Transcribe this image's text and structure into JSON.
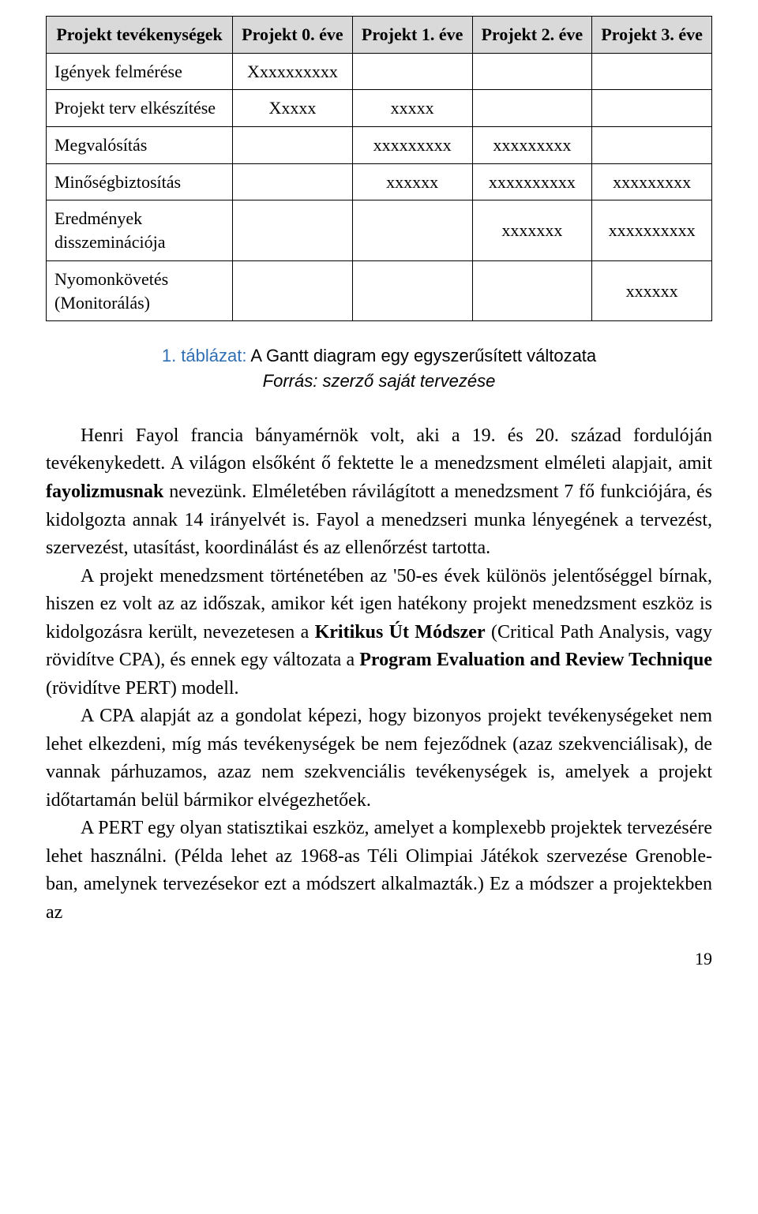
{
  "table": {
    "header_bg": "#d9d9d9",
    "border_color": "#000000",
    "columns": [
      "Projekt tevékenységek",
      "Projekt 0. éve",
      "Projekt 1. éve",
      "Projekt 2. éve",
      "Projekt 3. éve"
    ],
    "rows": [
      {
        "label": "Igények felmérése",
        "cells": [
          "Xxxxxxxxxx",
          "",
          "",
          ""
        ]
      },
      {
        "label": "Projekt terv elkészítése",
        "cells": [
          "Xxxxx",
          "xxxxx",
          "",
          ""
        ]
      },
      {
        "label": "Megvalósítás",
        "cells": [
          "",
          "xxxxxxxxx",
          "xxxxxxxxx",
          ""
        ]
      },
      {
        "label": "Minőségbiztosítás",
        "cells": [
          "",
          "xxxxxx",
          "xxxxxxxxxx",
          "xxxxxxxxx"
        ]
      },
      {
        "label": "Eredmények disszeminációja",
        "cells": [
          "",
          "",
          "xxxxxxx",
          "xxxxxxxxxx"
        ]
      },
      {
        "label": "Nyomonkövetés (Monitorálás)",
        "cells": [
          "",
          "",
          "",
          "xxxxxx"
        ]
      }
    ],
    "col_widths_pct": [
      28,
      18,
      18,
      18,
      18
    ],
    "font_size_pt": 16
  },
  "caption": {
    "lead": "1. táblázat:",
    "main": " A Gantt diagram egy egyszerűsített változata",
    "source": "Forrás: szerző saját tervezése",
    "lead_color": "#2f6fb3",
    "font_size_pt": 16
  },
  "paragraphs": {
    "p1_a": "Henri Fayol francia bányamérnök volt, aki a 19. és 20. század fordulóján tevékenykedett. A világon elsőként ő fektette le a menedzsment elméleti alapjait, amit ",
    "p1_b1": "fayolizmusnak",
    "p1_c": " nevezünk. Elméletében rávilágított a menedzsment 7 fő funkciójára, és kidolgozta annak 14 irányelvét is. Fayol a menedzseri munka lényegének a tervezést, szervezést, utasítást, koordinálást és az ellenőrzést tartotta.",
    "p2_a": "A projekt menedzsment történetében az '50-es évek különös jelentőséggel bírnak, hiszen ez volt az az időszak, amikor két igen hatékony projekt menedzsment eszköz is kidolgozásra került, nevezetesen a ",
    "p2_b1": "Kritikus Út Módszer",
    "p2_c": " (Critical Path Analysis, vagy rövidítve CPA), és ennek egy változata a ",
    "p2_b2": "Program Evaluation and Review Technique",
    "p2_d": " (rövidítve PERT) modell.",
    "p3": "A CPA alapját az a gondolat képezi, hogy bizonyos projekt tevékenységeket nem lehet elkezdeni, míg más tevékenységek be nem fejeződnek (azaz szekvenciálisak), de vannak párhuzamos, azaz nem szekvenciális tevékenységek is, amelyek a projekt időtartamán belül bármikor elvégezhetőek.",
    "p4": "A PERT egy olyan statisztikai eszköz, amelyet a komplexebb projektek tervezésére lehet használni. (Példa lehet az 1968-as Téli Olimpiai Játékok szervezése Grenoble-ban, amelynek tervezésekor ezt a módszert alkalmazták.) Ez a módszer a projektekben az",
    "font_size_pt": 18
  },
  "page_number": "19"
}
